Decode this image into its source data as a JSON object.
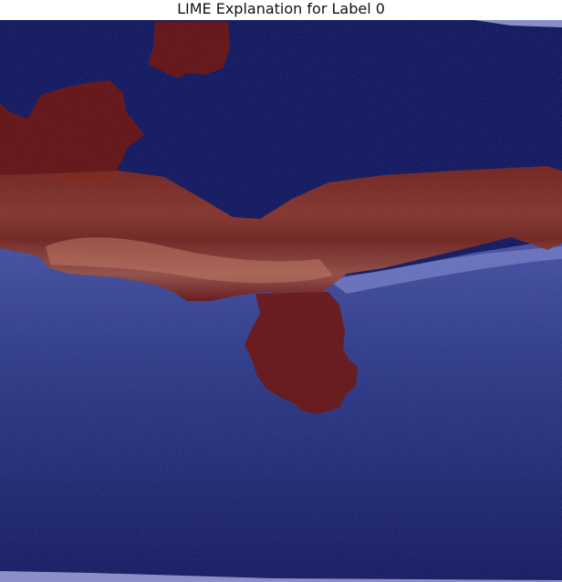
{
  "figure": {
    "title": "LIME Explanation for Label 0"
  },
  "image": {
    "description_kind": "OCT retinal scan with LIME superpixel mask overlay",
    "colors": {
      "background_blue": "#0a0f55",
      "retina_band_blue": "#3a4590",
      "mask_red": "#6e1a18",
      "mask_red_light": "#a8584a",
      "border_strip": "#8a8fc8"
    }
  }
}
